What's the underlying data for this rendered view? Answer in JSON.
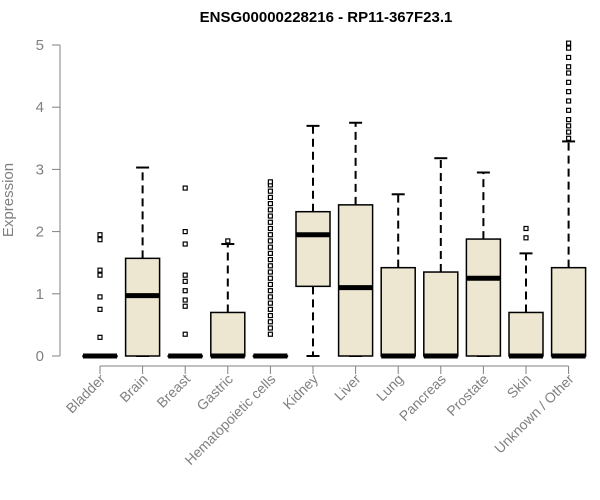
{
  "chart_data": {
    "type": "box",
    "title": "ENSG00000228216 - RP11-367F23.1",
    "xlabel": "",
    "ylabel": "Expression",
    "ylim": [
      0,
      5
    ],
    "yticks": [
      "0",
      "1",
      "2",
      "3",
      "4",
      "5"
    ],
    "grid": false,
    "colors": {
      "box_fill": "#ede6d0",
      "box_stroke": "#000000",
      "axis": "#808080",
      "median": "#000000"
    },
    "categories": [
      "Bladder",
      "Brain",
      "Breast",
      "Gastric",
      "Hematopoietic cells",
      "Kidney",
      "Liver",
      "Lung",
      "Pancreas",
      "Prostate",
      "Skin",
      "Unknown / Other"
    ],
    "boxes": [
      {
        "min": 0,
        "q1": 0,
        "median": 0,
        "q3": 0,
        "max": 0,
        "outliers": [
          0.3,
          0.75,
          0.95,
          1.3,
          1.38,
          1.87,
          1.95
        ]
      },
      {
        "min": 0,
        "q1": 0,
        "median": 0.97,
        "q3": 1.57,
        "max": 3.03,
        "outliers": []
      },
      {
        "min": 0,
        "q1": 0,
        "median": 0,
        "q3": 0,
        "max": 0,
        "outliers": [
          0.35,
          0.8,
          0.9,
          1.05,
          1.2,
          1.3,
          1.8,
          2.0,
          2.7
        ]
      },
      {
        "min": 0,
        "q1": 0,
        "median": 0,
        "q3": 0.7,
        "max": 1.8,
        "outliers": [
          1.85
        ]
      },
      {
        "min": 0,
        "q1": 0,
        "median": 0,
        "q3": 0,
        "max": 0,
        "outliers": [
          0.35,
          0.45,
          0.55,
          0.65,
          0.75,
          0.85,
          0.95,
          1.05,
          1.15,
          1.25,
          1.35,
          1.45,
          1.55,
          1.65,
          1.75,
          1.85,
          1.95,
          2.05,
          2.15,
          2.25,
          2.35,
          2.45,
          2.55,
          2.65,
          2.75,
          2.8
        ]
      },
      {
        "min": 0,
        "q1": 1.12,
        "median": 1.95,
        "q3": 2.32,
        "max": 3.7,
        "outliers": []
      },
      {
        "min": 0,
        "q1": 0,
        "median": 1.1,
        "q3": 2.43,
        "max": 3.75,
        "outliers": []
      },
      {
        "min": 0,
        "q1": 0,
        "median": 0,
        "q3": 1.42,
        "max": 2.6,
        "outliers": []
      },
      {
        "min": 0,
        "q1": 0,
        "median": 0,
        "q3": 1.35,
        "max": 3.18,
        "outliers": []
      },
      {
        "min": 0,
        "q1": 0,
        "median": 1.25,
        "q3": 1.88,
        "max": 2.95,
        "outliers": []
      },
      {
        "min": 0,
        "q1": 0,
        "median": 0,
        "q3": 0.7,
        "max": 1.65,
        "outliers": [
          1.9,
          2.05
        ]
      },
      {
        "min": 0,
        "q1": 0,
        "median": 0,
        "q3": 1.42,
        "max": 3.45,
        "outliers": [
          3.5,
          3.6,
          3.7,
          3.8,
          3.95,
          4.1,
          4.25,
          4.4,
          4.55,
          4.65,
          4.8,
          4.95,
          5.03
        ]
      }
    ]
  }
}
